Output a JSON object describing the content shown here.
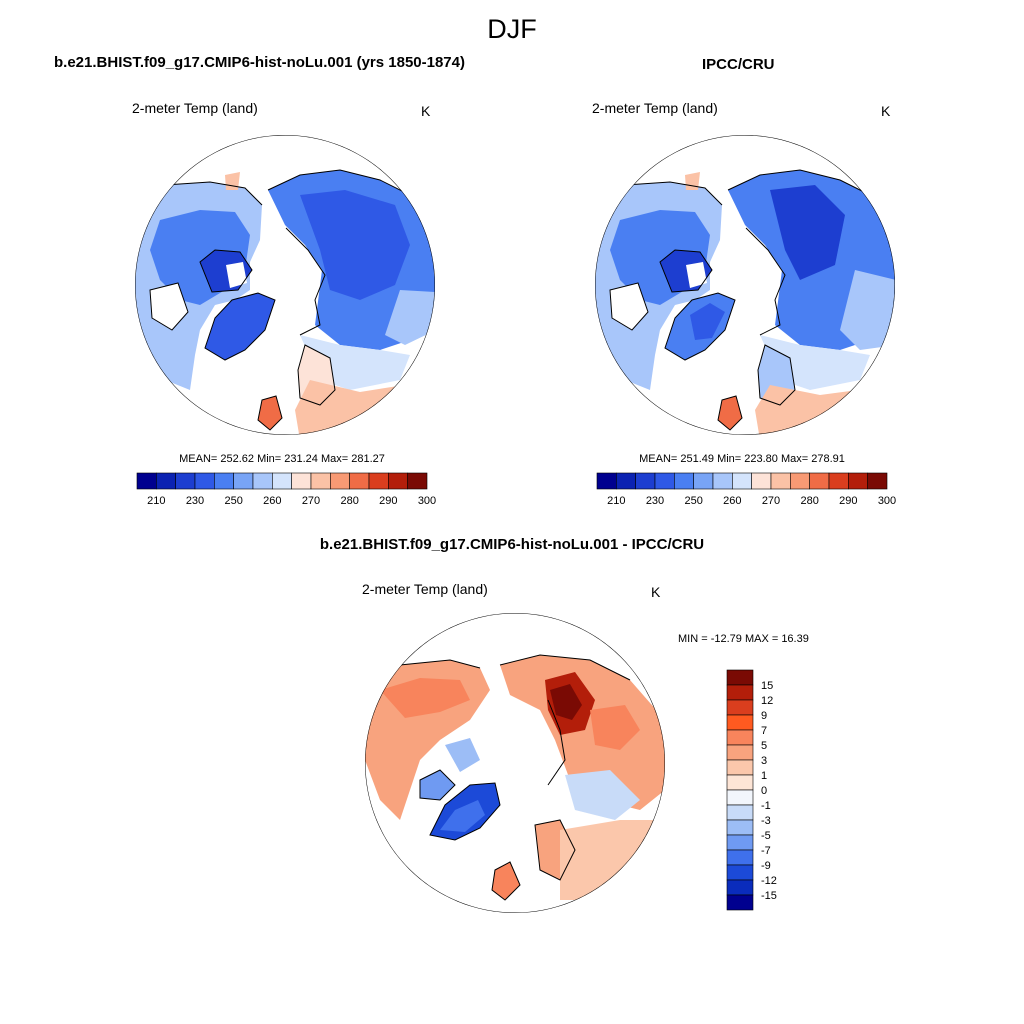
{
  "title": "DJF",
  "panels": [
    {
      "title": "b.e21.BHIST.f09_g17.CMIP6-hist-noLu.001 (yrs 1850-1874)",
      "variable": "2-meter Temp (land)",
      "units": "K",
      "stats": "MEAN= 252.62  Min= 231.24  Max= 281.27",
      "colorbar": {
        "orientation": "horizontal",
        "colors": [
          "#00008f",
          "#0b22b2",
          "#1d3ed0",
          "#2f59e6",
          "#4a7ff2",
          "#78a4f6",
          "#a8c6fa",
          "#d4e4fc",
          "#fde3d8",
          "#fbc2a6",
          "#f89a74",
          "#f06c46",
          "#da3e1e",
          "#b31e0a",
          "#7a0a04"
        ],
        "tick_labels": [
          "210",
          "230",
          "250",
          "260",
          "270",
          "280",
          "290",
          "300"
        ]
      }
    },
    {
      "title": "IPCC/CRU",
      "variable": "2-meter Temp (land)",
      "units": "K",
      "stats": "MEAN= 251.49  Min= 223.80  Max= 278.91",
      "colorbar": {
        "orientation": "horizontal",
        "colors": [
          "#00008f",
          "#0b22b2",
          "#1d3ed0",
          "#2f59e6",
          "#4a7ff2",
          "#78a4f6",
          "#a8c6fa",
          "#d4e4fc",
          "#fde3d8",
          "#fbc2a6",
          "#f89a74",
          "#f06c46",
          "#da3e1e",
          "#b31e0a",
          "#7a0a04"
        ],
        "tick_labels": [
          "210",
          "230",
          "250",
          "260",
          "270",
          "280",
          "290",
          "300"
        ]
      }
    },
    {
      "title": "b.e21.BHIST.f09_g17.CMIP6-hist-noLu.001 - IPCC/CRU",
      "variable": "2-meter Temp (land)",
      "units": "K",
      "stats": "MIN = -12.79 MAX =  16.39",
      "colorbar": {
        "orientation": "vertical",
        "colors": [
          "#7a0a04",
          "#b31e0a",
          "#da3e1e",
          "#ff5a20",
          "#f8845c",
          "#f8a37e",
          "#fbc7ab",
          "#fde5d6",
          "#f2f6fc",
          "#c8dbf8",
          "#9cbdf6",
          "#6f9af2",
          "#3f70ec",
          "#1c4ad8",
          "#0a2cbc",
          "#00008f"
        ],
        "tick_labels": [
          "15",
          "12",
          "9",
          "7",
          "5",
          "3",
          "1",
          "0",
          "-1",
          "-3",
          "-5",
          "-7",
          "-9",
          "-12",
          "-15"
        ]
      }
    }
  ]
}
